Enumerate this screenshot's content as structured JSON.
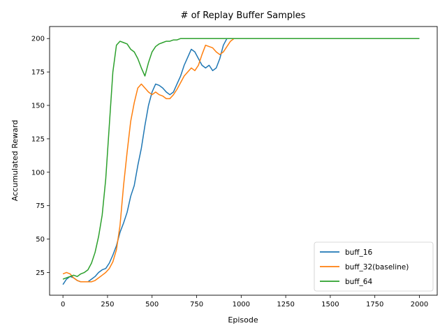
{
  "chart_data": {
    "type": "line",
    "title": "# of Replay Buffer Samples",
    "xlabel": "Episode",
    "ylabel": "Accumulated Reward",
    "xlim": [
      -75,
      2100
    ],
    "ylim": [
      8,
      209
    ],
    "xticks": [
      0,
      250,
      500,
      750,
      1000,
      1250,
      1500,
      1750,
      2000
    ],
    "yticks": [
      25,
      50,
      75,
      100,
      125,
      150,
      175,
      200
    ],
    "grid": false,
    "legend_position": "lower-right",
    "series": [
      {
        "name": "buff_16",
        "color": "#1f77b4",
        "x": [
          0,
          20,
          40,
          60,
          80,
          100,
          120,
          140,
          160,
          180,
          200,
          220,
          240,
          260,
          280,
          300,
          320,
          340,
          360,
          380,
          400,
          420,
          440,
          460,
          480,
          500,
          520,
          540,
          560,
          580,
          600,
          620,
          640,
          660,
          680,
          700,
          720,
          740,
          760,
          780,
          800,
          820,
          840,
          860,
          880,
          900,
          920,
          940,
          960,
          1000,
          1500,
          2000
        ],
        "y": [
          16,
          20,
          22,
          21,
          19,
          18,
          18,
          18,
          20,
          22,
          25,
          27,
          28,
          32,
          38,
          45,
          55,
          62,
          70,
          82,
          90,
          105,
          118,
          135,
          150,
          160,
          166,
          165,
          163,
          160,
          158,
          160,
          166,
          172,
          180,
          186,
          192,
          190,
          185,
          180,
          178,
          180,
          176,
          178,
          185,
          195,
          200,
          200,
          200,
          200,
          200,
          200
        ]
      },
      {
        "name": "buff_32(baseline)",
        "color": "#ff7f0e",
        "x": [
          0,
          20,
          40,
          60,
          80,
          100,
          120,
          140,
          160,
          180,
          200,
          220,
          240,
          260,
          280,
          300,
          320,
          340,
          360,
          380,
          400,
          420,
          440,
          460,
          480,
          500,
          520,
          540,
          560,
          580,
          600,
          620,
          640,
          660,
          680,
          700,
          720,
          740,
          760,
          780,
          800,
          820,
          840,
          860,
          880,
          900,
          920,
          940,
          960,
          1000,
          1500,
          2000
        ],
        "y": [
          24,
          25,
          24,
          21,
          19,
          18,
          18,
          18,
          18,
          19,
          21,
          23,
          25,
          28,
          33,
          42,
          60,
          90,
          115,
          138,
          152,
          163,
          166,
          163,
          160,
          158,
          160,
          158,
          157,
          155,
          155,
          158,
          162,
          167,
          172,
          175,
          178,
          176,
          180,
          188,
          195,
          194,
          193,
          190,
          188,
          190,
          194,
          198,
          200,
          200,
          200,
          200
        ]
      },
      {
        "name": "buff_64",
        "color": "#2ca02c",
        "x": [
          0,
          20,
          40,
          60,
          80,
          100,
          120,
          140,
          160,
          180,
          200,
          220,
          240,
          260,
          280,
          300,
          320,
          340,
          360,
          380,
          400,
          420,
          440,
          460,
          480,
          500,
          520,
          540,
          560,
          580,
          600,
          620,
          640,
          660,
          680,
          700,
          720,
          740,
          760,
          780,
          800,
          820,
          840,
          860,
          880,
          900,
          920,
          940,
          960,
          1000,
          1500,
          2000
        ],
        "y": [
          20,
          21,
          22,
          23,
          22,
          24,
          25,
          27,
          32,
          40,
          52,
          68,
          95,
          135,
          175,
          195,
          198,
          197,
          196,
          192,
          190,
          185,
          178,
          172,
          182,
          190,
          194,
          196,
          197,
          198,
          198,
          199,
          199,
          200,
          200,
          200,
          200,
          200,
          200,
          200,
          200,
          200,
          200,
          200,
          200,
          200,
          200,
          200,
          200,
          200,
          200,
          200
        ]
      }
    ]
  }
}
